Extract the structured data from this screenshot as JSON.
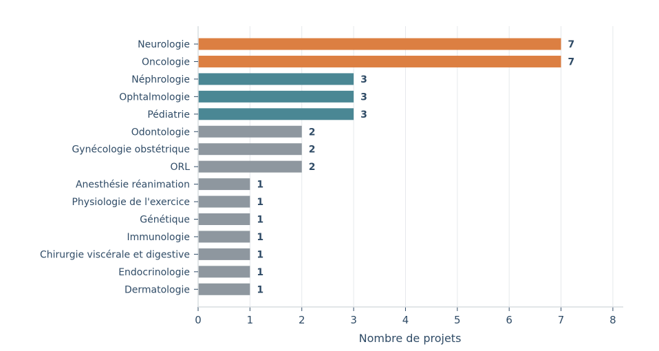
{
  "chart_data": {
    "type": "bar",
    "orientation": "horizontal",
    "categories": [
      "Neurologie",
      "Oncologie",
      "Néphrologie",
      "Ophtalmologie",
      "Pédiatrie",
      "Odontologie",
      "Gynécologie obstétrique",
      "ORL",
      "Anesthésie réanimation",
      "Physiologie de l'exercice",
      "Génétique",
      "Immunologie",
      "Chirurgie viscérale et digestive",
      "Endocrinologie",
      "Dermatologie"
    ],
    "values": [
      7,
      7,
      3,
      3,
      3,
      2,
      2,
      2,
      1,
      1,
      1,
      1,
      1,
      1,
      1
    ],
    "value_labels": [
      "7",
      "7",
      "3",
      "3",
      "3",
      "2",
      "2",
      "2",
      "1",
      "1",
      "1",
      "1",
      "1",
      "1",
      "1"
    ],
    "xlabel": "Nombre de projets",
    "xlim": [
      0,
      8.2
    ],
    "xticks": [
      0,
      1,
      2,
      3,
      4,
      5,
      6,
      7,
      8
    ],
    "xtick_labels": [
      "0",
      "1",
      "2",
      "3",
      "4",
      "5",
      "6",
      "7",
      "8"
    ],
    "grid": "vertical",
    "colors": {
      "top": "#dc7f42",
      "mid": "#4a8794",
      "low": "#8e979f",
      "text": "#2f4b66",
      "grid": "#e5e8eb",
      "axis": "#d9dde1"
    }
  }
}
